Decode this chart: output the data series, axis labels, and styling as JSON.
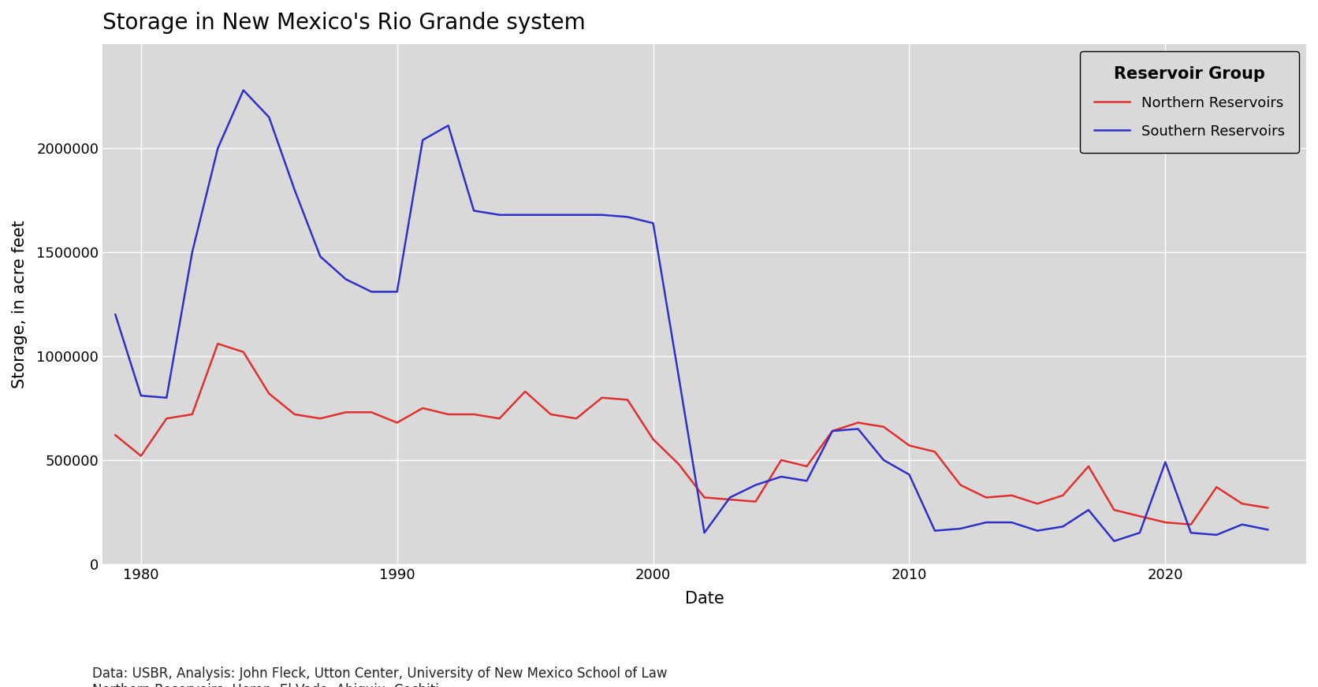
{
  "title": "Storage in New Mexico's Rio Grande system",
  "xlabel": "Date",
  "ylabel": "Storage, in acre feet",
  "plot_bg_color": "#d9d9d9",
  "fig_bg_color": "#ffffff",
  "grid_color": "#ffffff",
  "footnote": "Data: USBR, Analysis: John Fleck, Utton Center, University of New Mexico School of Law\nNorthern Reservoirs: Heron, El Vado, Abiquiu, Cochiti\nSouthern Reservoirs: Elephant Butte, Caballo",
  "legend_title": "Reservoir Group",
  "northern_label": "Northern Reservoirs",
  "southern_label": "Southern Reservoirs",
  "northern_color": "#e03030",
  "southern_color": "#3030c8",
  "ylim": [
    0,
    2500000
  ],
  "yticks": [
    0,
    500000,
    1000000,
    1500000,
    2000000
  ],
  "xlim_min": 1978.5,
  "xlim_max": 2025.5,
  "xticks": [
    1980,
    1990,
    2000,
    2010,
    2020
  ],
  "northern_years": [
    1979,
    1980,
    1981,
    1982,
    1983,
    1984,
    1985,
    1986,
    1987,
    1988,
    1989,
    1990,
    1991,
    1992,
    1993,
    1994,
    1995,
    1996,
    1997,
    1998,
    1999,
    2000,
    2001,
    2002,
    2003,
    2004,
    2005,
    2006,
    2007,
    2008,
    2009,
    2010,
    2011,
    2012,
    2013,
    2014,
    2015,
    2016,
    2017,
    2018,
    2019,
    2020,
    2021,
    2022,
    2023,
    2024
  ],
  "northern_values": [
    620000,
    520000,
    700000,
    720000,
    1060000,
    1020000,
    820000,
    720000,
    700000,
    730000,
    730000,
    680000,
    750000,
    720000,
    720000,
    700000,
    830000,
    720000,
    700000,
    800000,
    790000,
    600000,
    480000,
    320000,
    310000,
    300000,
    500000,
    470000,
    640000,
    680000,
    660000,
    570000,
    540000,
    380000,
    320000,
    330000,
    290000,
    330000,
    470000,
    260000,
    230000,
    200000,
    190000,
    370000,
    290000,
    270000
  ],
  "southern_years": [
    1979,
    1980,
    1981,
    1982,
    1983,
    1984,
    1985,
    1986,
    1987,
    1988,
    1989,
    1990,
    1991,
    1992,
    1993,
    1994,
    1995,
    1996,
    1997,
    1998,
    1999,
    2000,
    2001,
    2002,
    2003,
    2004,
    2005,
    2006,
    2007,
    2008,
    2009,
    2010,
    2011,
    2012,
    2013,
    2014,
    2015,
    2016,
    2017,
    2018,
    2019,
    2020,
    2021,
    2022,
    2023,
    2024
  ],
  "southern_values": [
    1200000,
    810000,
    800000,
    1500000,
    2000000,
    2280000,
    2150000,
    1800000,
    1480000,
    1370000,
    1310000,
    1310000,
    2040000,
    2110000,
    1700000,
    1680000,
    1680000,
    1680000,
    1680000,
    1680000,
    1670000,
    1640000,
    900000,
    150000,
    320000,
    380000,
    420000,
    400000,
    640000,
    650000,
    500000,
    430000,
    160000,
    170000,
    200000,
    200000,
    160000,
    180000,
    260000,
    110000,
    150000,
    490000,
    150000,
    140000,
    190000,
    165000
  ],
  "title_fontsize": 20,
  "axis_label_fontsize": 15,
  "tick_fontsize": 13,
  "legend_title_fontsize": 15,
  "legend_fontsize": 13,
  "footnote_fontsize": 12,
  "linewidth": 1.8
}
